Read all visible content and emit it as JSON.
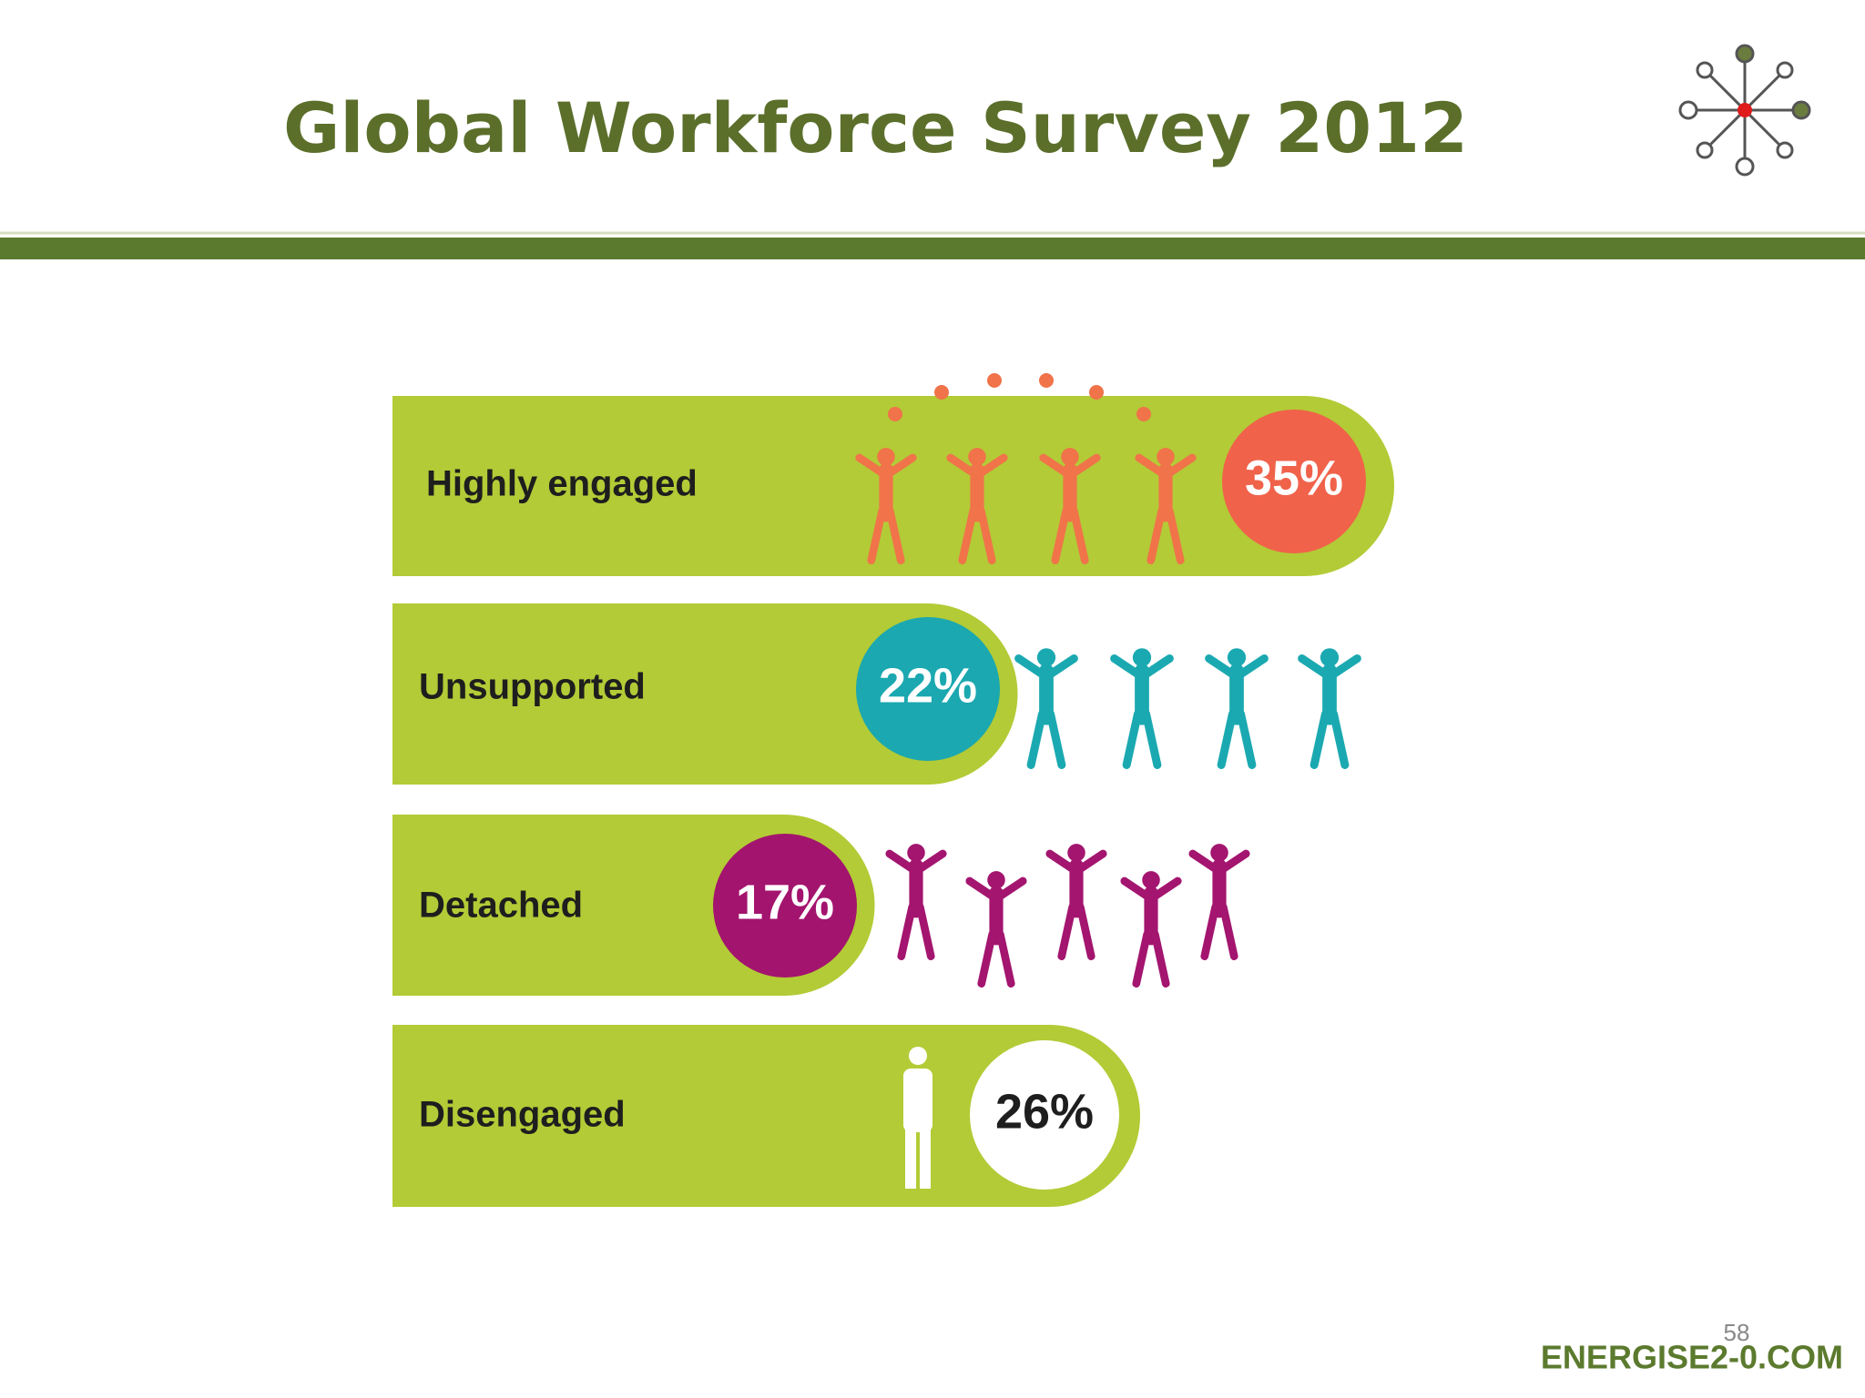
{
  "header": {
    "title": "Global Workforce Survey 2012"
  },
  "items": [
    {
      "label": "Highly engaged",
      "value": "35%"
    },
    {
      "label": "Unsupported",
      "value": "22%"
    },
    {
      "label": "Detached",
      "value": "17%"
    },
    {
      "label": "Disengaged",
      "value": "26%"
    }
  ],
  "footer": {
    "page": "58",
    "brand": "ENERGISE2-0.COM"
  }
}
